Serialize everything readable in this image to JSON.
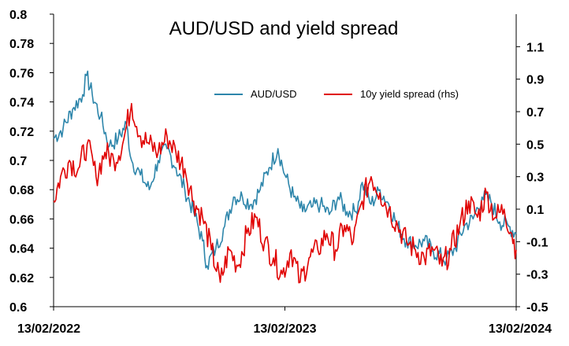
{
  "chart_data": {
    "type": "line",
    "title": "AUD/USD and yield spread",
    "legend": {
      "placement": "top-right-inside"
    },
    "grid": false,
    "x": {
      "type": "date",
      "range": [
        "2022-02-13",
        "2024-02-13"
      ],
      "tick_labels": [
        "13/02/2022",
        "13/02/2023",
        "13/02/2024"
      ],
      "tick_dates": [
        "2022-02-13",
        "2023-02-13",
        "2024-02-13"
      ]
    },
    "y_left": {
      "range": [
        0.6,
        0.8
      ],
      "tick_labels": [
        "0.8",
        "0.78",
        "0.76",
        "0.74",
        "0.72",
        "0.7",
        "0.68",
        "0.66",
        "0.64",
        "0.62",
        "0.6"
      ],
      "tick_values": [
        0.8,
        0.78,
        0.76,
        0.74,
        0.72,
        0.7,
        0.68,
        0.66,
        0.64,
        0.62,
        0.6
      ]
    },
    "y_right": {
      "range": [
        -0.5,
        1.3
      ],
      "tick_labels": [
        "1.1",
        "0.9",
        "0.7",
        "0.5",
        "0.3",
        "0.1",
        "-0.1",
        "-0.3",
        "-0.5"
      ],
      "tick_values": [
        1.1,
        0.9,
        0.7,
        0.5,
        0.3,
        0.1,
        -0.1,
        -0.3,
        -0.5
      ]
    },
    "series": [
      {
        "name": "AUD/USD",
        "axis": "left",
        "color": "#2E86AB",
        "points": [
          [
            "2022-02-13",
            0.715
          ],
          [
            "2022-02-28",
            0.722
          ],
          [
            "2022-03-15",
            0.735
          ],
          [
            "2022-03-31",
            0.745
          ],
          [
            "2022-04-06",
            0.758
          ],
          [
            "2022-04-15",
            0.745
          ],
          [
            "2022-04-28",
            0.73
          ],
          [
            "2022-05-12",
            0.71
          ],
          [
            "2022-05-26",
            0.715
          ],
          [
            "2022-06-08",
            0.725
          ],
          [
            "2022-06-16",
            0.7
          ],
          [
            "2022-06-30",
            0.69
          ],
          [
            "2022-07-14",
            0.68
          ],
          [
            "2022-07-28",
            0.7
          ],
          [
            "2022-08-11",
            0.708
          ],
          [
            "2022-08-25",
            0.695
          ],
          [
            "2022-09-08",
            0.68
          ],
          [
            "2022-09-22",
            0.665
          ],
          [
            "2022-10-06",
            0.645
          ],
          [
            "2022-10-13",
            0.628
          ],
          [
            "2022-10-27",
            0.64
          ],
          [
            "2022-11-10",
            0.655
          ],
          [
            "2022-11-24",
            0.675
          ],
          [
            "2022-12-08",
            0.675
          ],
          [
            "2022-12-22",
            0.67
          ],
          [
            "2023-01-05",
            0.68
          ],
          [
            "2023-01-19",
            0.695
          ],
          [
            "2023-02-02",
            0.708
          ],
          [
            "2023-02-13",
            0.69
          ],
          [
            "2023-02-27",
            0.675
          ],
          [
            "2023-03-13",
            0.665
          ],
          [
            "2023-03-27",
            0.668
          ],
          [
            "2023-04-10",
            0.67
          ],
          [
            "2023-04-24",
            0.663
          ],
          [
            "2023-05-08",
            0.675
          ],
          [
            "2023-05-22",
            0.665
          ],
          [
            "2023-06-05",
            0.665
          ],
          [
            "2023-06-15",
            0.685
          ],
          [
            "2023-06-29",
            0.67
          ],
          [
            "2023-07-13",
            0.68
          ],
          [
            "2023-07-27",
            0.67
          ],
          [
            "2023-08-10",
            0.655
          ],
          [
            "2023-08-24",
            0.645
          ],
          [
            "2023-09-07",
            0.642
          ],
          [
            "2023-09-21",
            0.645
          ],
          [
            "2023-10-05",
            0.638
          ],
          [
            "2023-10-26",
            0.632
          ],
          [
            "2023-11-09",
            0.64
          ],
          [
            "2023-11-23",
            0.655
          ],
          [
            "2023-12-07",
            0.66
          ],
          [
            "2023-12-21",
            0.675
          ],
          [
            "2024-01-04",
            0.672
          ],
          [
            "2024-01-18",
            0.658
          ],
          [
            "2024-02-01",
            0.655
          ],
          [
            "2024-02-13",
            0.65
          ]
        ]
      },
      {
        "name": "10y yield spread (rhs)",
        "axis": "right",
        "color": "#E00000",
        "points": [
          [
            "2022-02-13",
            0.15
          ],
          [
            "2022-02-24",
            0.3
          ],
          [
            "2022-03-10",
            0.4
          ],
          [
            "2022-03-24",
            0.35
          ],
          [
            "2022-04-07",
            0.5
          ],
          [
            "2022-04-21",
            0.3
          ],
          [
            "2022-05-05",
            0.45
          ],
          [
            "2022-05-19",
            0.4
          ],
          [
            "2022-06-02",
            0.5
          ],
          [
            "2022-06-16",
            0.75
          ],
          [
            "2022-06-30",
            0.55
          ],
          [
            "2022-07-14",
            0.5
          ],
          [
            "2022-07-28",
            0.45
          ],
          [
            "2022-08-11",
            0.55
          ],
          [
            "2022-08-25",
            0.45
          ],
          [
            "2022-09-08",
            0.35
          ],
          [
            "2022-09-22",
            0.15
          ],
          [
            "2022-10-06",
            0.05
          ],
          [
            "2022-10-20",
            -0.15
          ],
          [
            "2022-11-03",
            -0.35
          ],
          [
            "2022-11-17",
            -0.15
          ],
          [
            "2022-12-01",
            -0.25
          ],
          [
            "2022-12-15",
            -0.05
          ],
          [
            "2022-12-29",
            0.05
          ],
          [
            "2023-01-12",
            -0.1
          ],
          [
            "2023-01-26",
            -0.2
          ],
          [
            "2023-02-09",
            -0.3
          ],
          [
            "2023-02-23",
            -0.15
          ],
          [
            "2023-03-09",
            -0.35
          ],
          [
            "2023-03-23",
            -0.2
          ],
          [
            "2023-04-06",
            -0.15
          ],
          [
            "2023-04-20",
            -0.05
          ],
          [
            "2023-05-04",
            -0.15
          ],
          [
            "2023-05-18",
            0.0
          ],
          [
            "2023-06-01",
            -0.1
          ],
          [
            "2023-06-15",
            0.15
          ],
          [
            "2023-06-29",
            0.3
          ],
          [
            "2023-07-13",
            0.2
          ],
          [
            "2023-07-27",
            0.1
          ],
          [
            "2023-08-10",
            0.0
          ],
          [
            "2023-08-24",
            -0.1
          ],
          [
            "2023-09-07",
            -0.15
          ],
          [
            "2023-09-21",
            -0.2
          ],
          [
            "2023-10-05",
            -0.15
          ],
          [
            "2023-10-19",
            -0.25
          ],
          [
            "2023-11-02",
            -0.15
          ],
          [
            "2023-11-16",
            0.0
          ],
          [
            "2023-11-30",
            0.15
          ],
          [
            "2023-12-14",
            0.05
          ],
          [
            "2023-12-28",
            0.2
          ],
          [
            "2024-01-11",
            0.05
          ],
          [
            "2024-01-25",
            0.1
          ],
          [
            "2024-02-06",
            -0.05
          ],
          [
            "2024-02-13",
            -0.15
          ]
        ]
      }
    ]
  }
}
